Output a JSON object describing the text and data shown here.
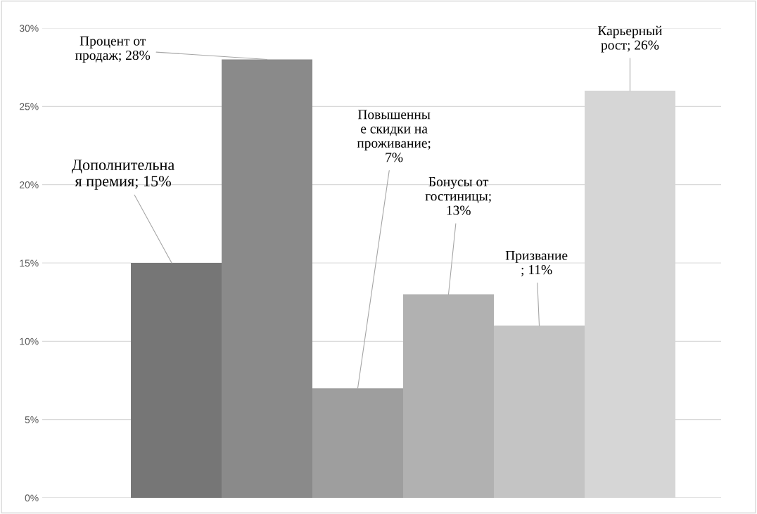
{
  "chart_data": {
    "type": "bar",
    "categories": [
      null,
      null,
      null,
      null,
      null,
      null
    ],
    "values": [
      15,
      28,
      7,
      13,
      11,
      26
    ],
    "colors": [
      "#767676",
      "#8a8a8a",
      "#9e9e9e",
      "#b1b1b1",
      "#c4c4c4",
      "#d6d6d6"
    ],
    "value_labels": [
      "Дополнительна\nя премия; 15%",
      "Процент от\nпродаж; 28%",
      "Повышенны\nе скидки на\nпроживание;\n7%",
      "Бонусы от\nгостиницы;\n13%",
      "Призвание\n; 11%",
      "Карьерный\nрост; 26%"
    ],
    "ylim": [
      0,
      30
    ],
    "yticks": [
      {
        "value": 0,
        "label": "0%"
      },
      {
        "value": 5,
        "label": "5%"
      },
      {
        "value": 10,
        "label": "10%"
      },
      {
        "value": 15,
        "label": "15%"
      },
      {
        "value": 20,
        "label": "20%"
      },
      {
        "value": 25,
        "label": "25%"
      },
      {
        "value": 30,
        "label": "30%"
      }
    ],
    "grid": "y",
    "tick_labels": "y"
  }
}
